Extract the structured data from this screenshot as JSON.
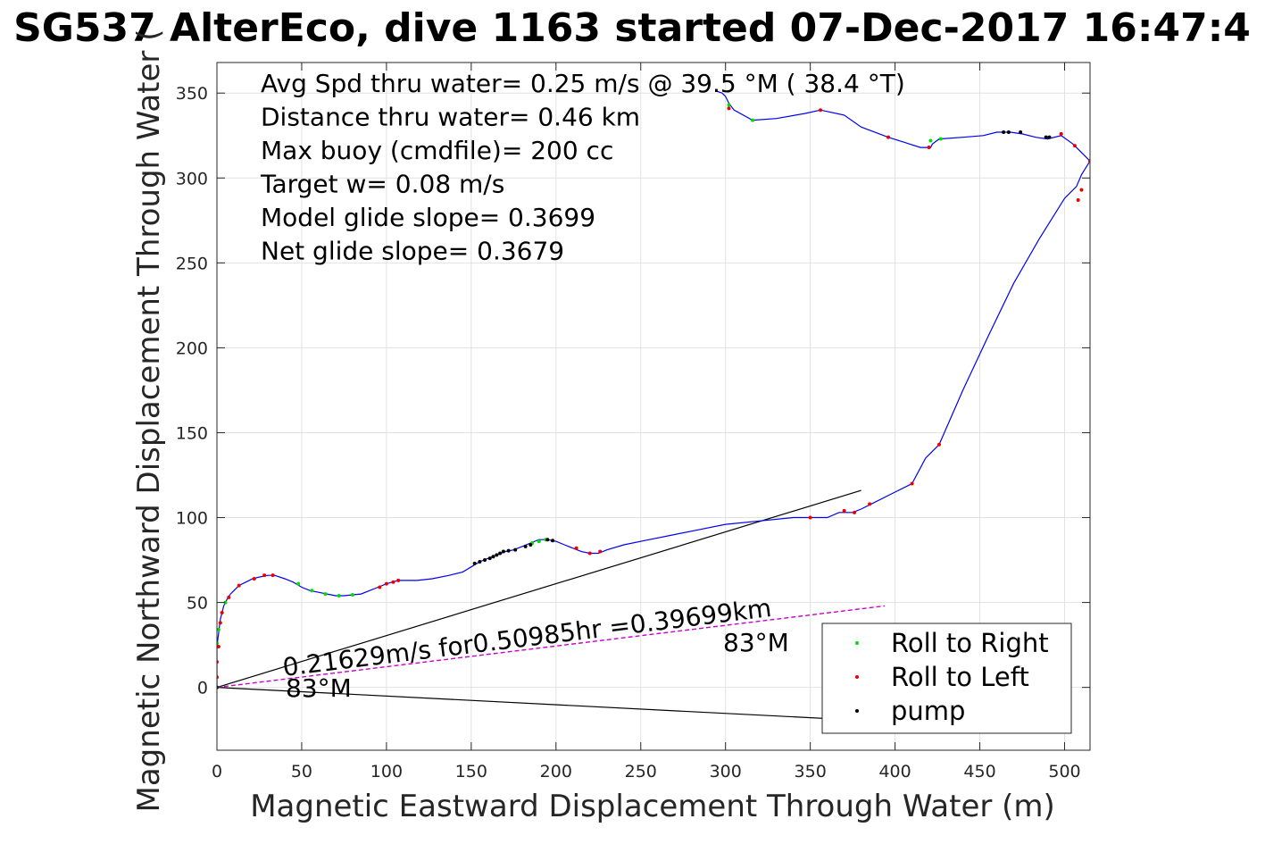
{
  "chart_data": {
    "type": "line",
    "title": "SG537 AlterEco, dive 1163 started 07-Dec-2017 16:47:4",
    "xlabel": "Magnetic Eastward Displacement Through Water (m)",
    "ylabel": "Magnetic Northward Displacement Through Water (",
    "xlim": [
      0,
      515
    ],
    "ylim": [
      -37,
      368
    ],
    "xticks": [
      0,
      50,
      100,
      150,
      200,
      250,
      300,
      350,
      400,
      450,
      500
    ],
    "yticks": [
      0,
      50,
      100,
      150,
      200,
      250,
      300,
      350
    ],
    "grid": true,
    "annotations": [
      "Avg Spd thru water=  0.25 m/s @  39.5 °M ( 38.4 °T)",
      "Distance thru water=  0.46 km",
      "Max buoy (cmdfile)= 200 cc",
      "Target w= 0.08 m/s",
      "Model glide slope= 0.3699",
      "Net glide slope= 0.3679"
    ],
    "current_label": "0.21629m/s for0.50985hr =0.39699km",
    "heading_label_start": "83°M",
    "heading_label_end": "83°M",
    "legend": {
      "location": "bottom-right",
      "entries": [
        {
          "label": "Roll to Right",
          "color": "#00dd00"
        },
        {
          "label": "Roll to Left",
          "color": "#ee0000"
        },
        {
          "label": "pump",
          "color": "#000000"
        }
      ]
    },
    "track": {
      "color": "#0000ee",
      "points": [
        [
          0,
          0
        ],
        [
          0,
          4
        ],
        [
          0,
          8
        ],
        [
          0,
          12
        ],
        [
          0,
          16
        ],
        [
          0,
          20
        ],
        [
          0,
          24
        ],
        [
          0.5,
          28
        ],
        [
          1,
          32
        ],
        [
          1.5,
          36
        ],
        [
          2,
          40
        ],
        [
          3,
          44
        ],
        [
          4,
          48
        ],
        [
          6,
          52
        ],
        [
          8,
          55
        ],
        [
          10,
          57
        ],
        [
          13,
          60
        ],
        [
          17,
          62
        ],
        [
          21,
          64
        ],
        [
          25,
          65
        ],
        [
          30,
          66
        ],
        [
          34,
          66
        ],
        [
          40,
          64
        ],
        [
          45,
          62
        ],
        [
          50,
          59
        ],
        [
          55,
          57
        ],
        [
          60,
          56
        ],
        [
          65,
          55
        ],
        [
          70,
          54
        ],
        [
          75,
          54
        ],
        [
          80,
          54.5
        ],
        [
          85,
          55
        ],
        [
          90,
          57
        ],
        [
          95,
          59
        ],
        [
          100,
          61
        ],
        [
          105,
          62.5
        ],
        [
          108,
          63
        ],
        [
          118,
          63
        ],
        [
          127,
          64
        ],
        [
          137,
          66
        ],
        [
          145,
          68
        ],
        [
          150,
          71
        ],
        [
          155,
          74
        ],
        [
          160,
          76
        ],
        [
          165,
          78
        ],
        [
          170,
          80
        ],
        [
          175,
          81
        ],
        [
          180,
          83
        ],
        [
          185,
          85
        ],
        [
          190,
          87
        ],
        [
          195,
          87
        ],
        [
          200,
          86
        ],
        [
          205,
          84
        ],
        [
          210,
          82
        ],
        [
          215,
          80
        ],
        [
          220,
          79
        ],
        [
          225,
          79
        ],
        [
          230,
          81
        ],
        [
          240,
          84
        ],
        [
          255,
          87
        ],
        [
          270,
          90
        ],
        [
          285,
          93
        ],
        [
          300,
          96
        ],
        [
          320,
          98
        ],
        [
          340,
          100
        ],
        [
          350,
          100
        ],
        [
          360,
          100
        ],
        [
          367,
          103
        ],
        [
          375,
          103
        ],
        [
          380,
          105
        ],
        [
          386,
          108
        ],
        [
          398,
          114
        ],
        [
          410,
          120
        ],
        [
          418,
          135
        ],
        [
          426,
          143
        ],
        [
          440,
          175
        ],
        [
          455,
          207
        ],
        [
          470,
          238
        ],
        [
          485,
          264
        ],
        [
          500,
          288
        ],
        [
          507,
          295
        ],
        [
          510,
          302
        ],
        [
          515,
          310
        ],
        [
          510,
          315
        ],
        [
          505,
          320
        ],
        [
          498,
          325
        ],
        [
          490,
          323
        ],
        [
          483,
          324
        ],
        [
          475,
          326
        ],
        [
          468,
          327
        ],
        [
          460,
          327
        ],
        [
          452,
          325
        ],
        [
          440,
          324
        ],
        [
          426,
          323
        ],
        [
          422,
          320
        ],
        [
          421,
          318
        ],
        [
          415,
          318
        ],
        [
          396,
          324
        ],
        [
          380,
          330
        ],
        [
          370,
          337
        ],
        [
          356,
          340
        ],
        [
          347,
          338
        ],
        [
          330,
          335
        ],
        [
          316,
          334
        ],
        [
          305,
          340
        ],
        [
          302,
          344
        ],
        [
          300,
          348
        ],
        [
          298,
          350
        ],
        [
          295,
          351
        ]
      ]
    },
    "black_lines": [
      {
        "from": [
          0,
          0
        ],
        "to": [
          380,
          116
        ]
      },
      {
        "from": [
          0,
          0
        ],
        "to": [
          392,
          -20
        ]
      }
    ],
    "current_line": {
      "from": [
        0,
        0
      ],
      "to": [
        394,
        48
      ],
      "color": "#cc00cc"
    },
    "markers": {
      "roll_right": [
        [
          0,
          26
        ],
        [
          1,
          34
        ],
        [
          5,
          50
        ],
        [
          48,
          61
        ],
        [
          56,
          57
        ],
        [
          64,
          55
        ],
        [
          72,
          54
        ],
        [
          80,
          54.5
        ],
        [
          186,
          85
        ],
        [
          190,
          86
        ],
        [
          194,
          87
        ],
        [
          302,
          343
        ],
        [
          316,
          334
        ],
        [
          421,
          322
        ],
        [
          427,
          323
        ]
      ],
      "roll_left": [
        [
          0,
          6
        ],
        [
          0,
          15
        ],
        [
          1,
          24
        ],
        [
          2,
          38
        ],
        [
          3,
          44
        ],
        [
          7,
          53
        ],
        [
          13,
          60
        ],
        [
          22,
          64
        ],
        [
          28,
          66
        ],
        [
          33,
          66
        ],
        [
          96,
          59
        ],
        [
          100,
          61
        ],
        [
          104,
          62
        ],
        [
          107,
          63
        ],
        [
          212,
          82
        ],
        [
          220,
          79
        ],
        [
          226,
          80
        ],
        [
          350,
          100
        ],
        [
          370,
          104
        ],
        [
          376,
          103
        ],
        [
          385,
          108
        ],
        [
          410,
          120
        ],
        [
          426,
          143
        ],
        [
          508,
          287
        ],
        [
          510,
          293
        ],
        [
          515,
          310
        ],
        [
          506,
          319
        ],
        [
          498,
          326
        ],
        [
          396,
          324
        ],
        [
          302,
          341
        ],
        [
          356,
          340
        ],
        [
          420,
          318
        ]
      ],
      "pump": [
        [
          0,
          0
        ],
        [
          152,
          73
        ],
        [
          155,
          74
        ],
        [
          158,
          75
        ],
        [
          161,
          76
        ],
        [
          163,
          77
        ],
        [
          165,
          78
        ],
        [
          167,
          79
        ],
        [
          169,
          80
        ],
        [
          172,
          80.5
        ],
        [
          176,
          81
        ],
        [
          182,
          83
        ],
        [
          185,
          84
        ],
        [
          195,
          87
        ],
        [
          198,
          86.5
        ],
        [
          464,
          327
        ],
        [
          467,
          327
        ],
        [
          474,
          327
        ],
        [
          489,
          324
        ],
        [
          491,
          324
        ]
      ]
    }
  }
}
